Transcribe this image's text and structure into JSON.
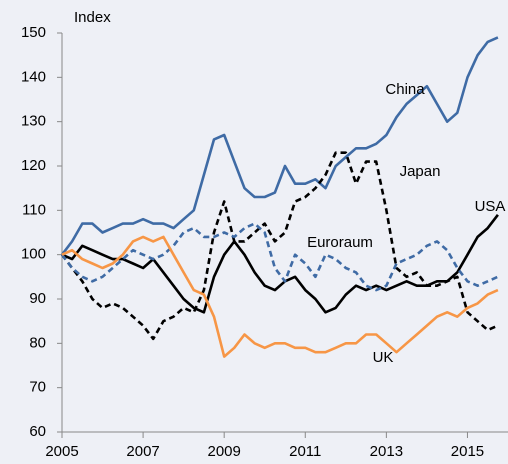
{
  "chart_data": {
    "type": "line",
    "ylabel": "Index",
    "x": [
      2005,
      2005.25,
      2005.5,
      2005.75,
      2006,
      2006.25,
      2006.5,
      2006.75,
      2007,
      2007.25,
      2007.5,
      2007.75,
      2008,
      2008.25,
      2008.5,
      2008.75,
      2009,
      2009.25,
      2009.5,
      2009.75,
      2010,
      2010.25,
      2010.5,
      2010.75,
      2011,
      2011.25,
      2011.5,
      2011.75,
      2012,
      2012.25,
      2012.5,
      2012.75,
      2013,
      2013.25,
      2013.5,
      2013.75,
      2014,
      2014.25,
      2014.5,
      2014.75,
      2015,
      2015.25,
      2015.5,
      2015.75
    ],
    "series": [
      {
        "name": "China",
        "color": "#3f6ba5",
        "dashed": false,
        "values": [
          100,
          103,
          107,
          107,
          105,
          106,
          107,
          107,
          108,
          107,
          107,
          106,
          108,
          110,
          118,
          126,
          127,
          121,
          115,
          113,
          113,
          114,
          120,
          116,
          116,
          117,
          115,
          120,
          122,
          124,
          124,
          125,
          127,
          131,
          134,
          136,
          138,
          134,
          130,
          132,
          140,
          145,
          148,
          149
        ]
      },
      {
        "name": "USA",
        "color": "#000000",
        "dashed": false,
        "values": [
          100,
          99,
          102,
          101,
          100,
          99,
          99,
          98,
          97,
          99,
          96,
          93,
          90,
          88,
          87,
          95,
          100,
          103,
          100,
          96,
          93,
          92,
          94,
          95,
          92,
          90,
          87,
          88,
          91,
          93,
          92,
          93,
          92,
          93,
          94,
          93,
          93,
          94,
          94,
          96,
          100,
          104,
          106,
          109
        ]
      },
      {
        "name": "Japan",
        "color": "#000000",
        "dashed": true,
        "values": [
          100,
          97,
          94,
          90,
          88,
          89,
          88,
          86,
          84,
          81,
          85,
          86,
          88,
          87,
          92,
          105,
          112,
          103,
          103,
          105,
          107,
          103,
          105,
          112,
          113,
          115,
          118,
          123,
          123,
          116,
          121,
          121,
          110,
          97,
          95,
          96,
          93,
          93,
          94,
          95,
          87,
          85,
          83,
          84
        ]
      },
      {
        "name": "Euroraum",
        "color": "#3f6ba5",
        "dashed": true,
        "values": [
          100,
          97,
          95,
          94,
          95,
          97,
          99,
          101,
          100,
          99,
          100,
          102,
          105,
          106,
          104,
          104,
          105,
          104,
          106,
          107,
          105,
          97,
          94,
          100,
          98,
          95,
          100,
          99,
          97,
          96,
          93,
          92,
          93,
          98,
          99,
          100,
          102,
          103,
          101,
          97,
          94,
          93,
          94,
          95
        ]
      },
      {
        "name": "UK",
        "color": "#f79646",
        "dashed": false,
        "values": [
          100,
          101,
          99,
          98,
          97,
          98,
          100,
          103,
          104,
          103,
          104,
          100,
          96,
          92,
          91,
          86,
          77,
          79,
          82,
          80,
          79,
          80,
          80,
          79,
          79,
          78,
          78,
          79,
          80,
          80,
          82,
          82,
          80,
          78,
          80,
          82,
          84,
          86,
          87,
          86,
          88,
          89,
          91,
          92
        ]
      }
    ],
    "xlim": [
      2005,
      2016
    ],
    "xticks": [
      2005,
      2007,
      2009,
      2011,
      2013,
      2015
    ],
    "ylim": [
      60,
      150
    ],
    "yticks": [
      60,
      70,
      80,
      90,
      100,
      110,
      120,
      130,
      140,
      150
    ]
  }
}
